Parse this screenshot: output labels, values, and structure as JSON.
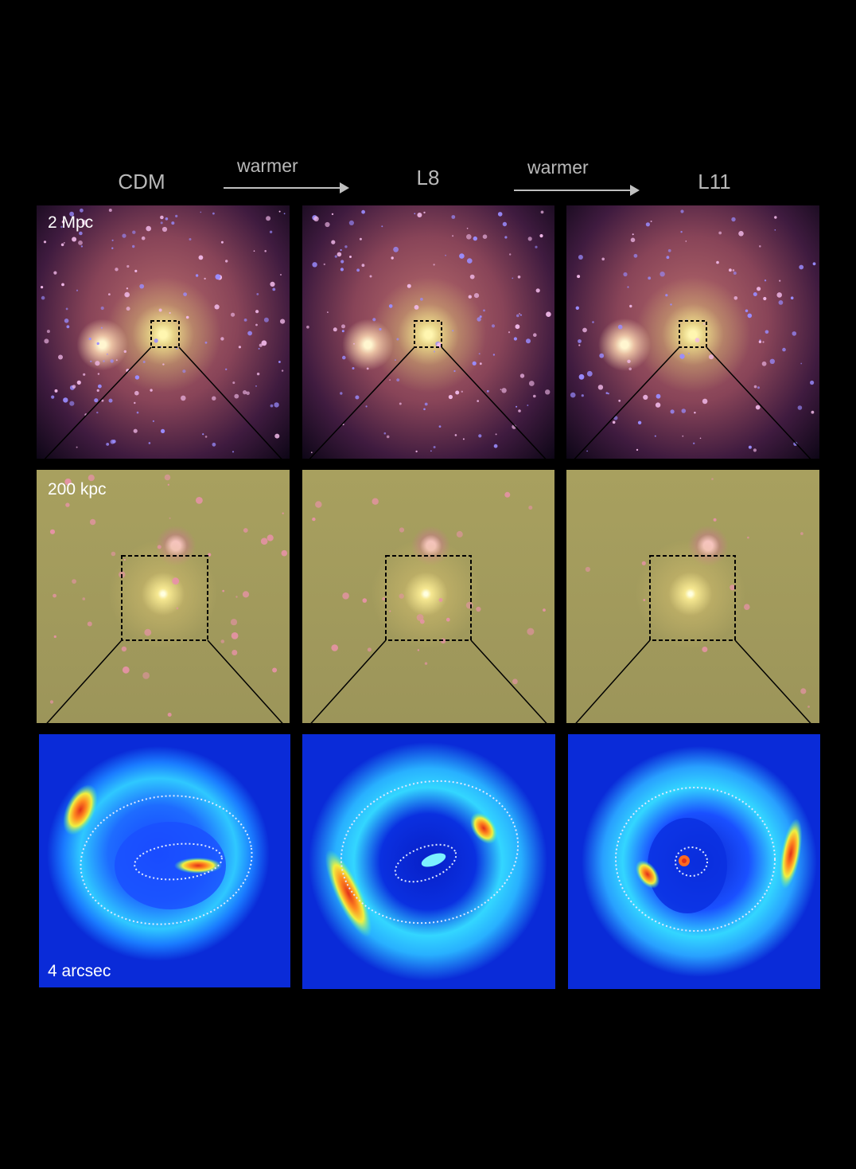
{
  "columns": [
    {
      "title": "CDM"
    },
    {
      "title": "L8"
    },
    {
      "title": "L11"
    }
  ],
  "arrows": [
    {
      "label": "warmer"
    },
    {
      "label": "warmer"
    }
  ],
  "rows": [
    {
      "scale_label": "2 Mpc"
    },
    {
      "scale_label": "200 kpc"
    },
    {
      "scale_label": "4 arcsec"
    }
  ],
  "colors": {
    "background": "#000000",
    "halo_pink": "#c46a7a",
    "halo_blue": "#6a5cff",
    "core_yellow": "#fff3a0",
    "zoom_tan": "#a39a5a",
    "lens_blue": "#0a2bd8",
    "lens_cyan": "#33d6ff",
    "lens_red": "#e0301a"
  }
}
